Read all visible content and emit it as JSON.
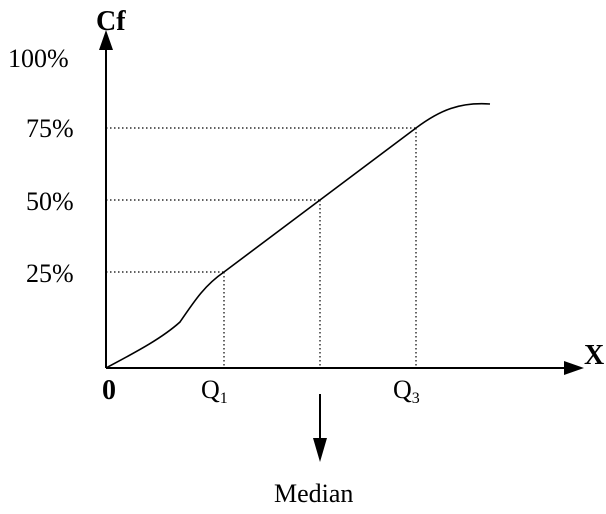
{
  "axes": {
    "y_title": "Cf",
    "x_title": "X",
    "origin_label": "0"
  },
  "y_ticks": [
    "100%",
    "75%",
    "50%",
    "25%"
  ],
  "x_markers": {
    "q1": {
      "letter": "Q",
      "sub": "1"
    },
    "q3": {
      "letter": "Q",
      "sub": "3"
    }
  },
  "median_label": "Median"
}
